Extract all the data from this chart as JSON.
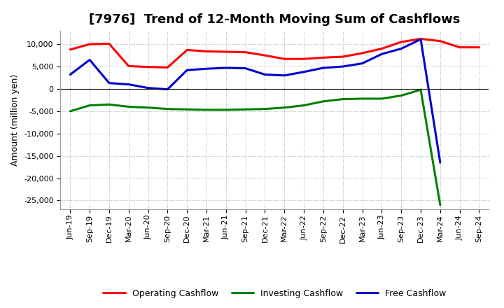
{
  "title": "[7976]  Trend of 12-Month Moving Sum of Cashflows",
  "ylabel": "Amount (million yen)",
  "background_color": "#ffffff",
  "plot_background": "#ffffff",
  "ylim": [
    -27000,
    13000
  ],
  "yticks": [
    -25000,
    -20000,
    -15000,
    -10000,
    -5000,
    0,
    5000,
    10000
  ],
  "labels": [
    "Jun-19",
    "Sep-19",
    "Dec-19",
    "Mar-20",
    "Jun-20",
    "Sep-20",
    "Dec-20",
    "Mar-21",
    "Jun-21",
    "Sep-21",
    "Dec-21",
    "Mar-22",
    "Jun-22",
    "Sep-22",
    "Dec-22",
    "Mar-23",
    "Jun-23",
    "Sep-23",
    "Dec-23",
    "Mar-24",
    "Jun-24",
    "Sep-24"
  ],
  "operating": [
    8800,
    10000,
    10100,
    5100,
    4900,
    4800,
    8700,
    8400,
    8300,
    8200,
    7500,
    6700,
    6700,
    7000,
    7200,
    8000,
    9000,
    10500,
    11200,
    10700,
    9300,
    9300
  ],
  "investing": [
    -5000,
    -3700,
    -3500,
    -4000,
    -4200,
    -4500,
    -4600,
    -4700,
    -4700,
    -4600,
    -4500,
    -4200,
    -3700,
    -2800,
    -2300,
    -2200,
    -2200,
    -1500,
    -200,
    -26000,
    null,
    null
  ],
  "free": [
    3200,
    6500,
    1300,
    1000,
    200,
    -100,
    4200,
    4500,
    4700,
    4600,
    3200,
    3000,
    3800,
    4700,
    5000,
    5700,
    7800,
    9000,
    11100,
    -16500,
    null,
    null
  ],
  "operating_color": "#ff0000",
  "investing_color": "#008000",
  "free_color": "#0000cd",
  "legend_labels": [
    "Operating Cashflow",
    "Investing Cashflow",
    "Free Cashflow"
  ],
  "line_width": 2.2,
  "grid_color": "#aaaaaa",
  "tick_fontsize": 8,
  "ylabel_fontsize": 9,
  "title_fontsize": 13
}
